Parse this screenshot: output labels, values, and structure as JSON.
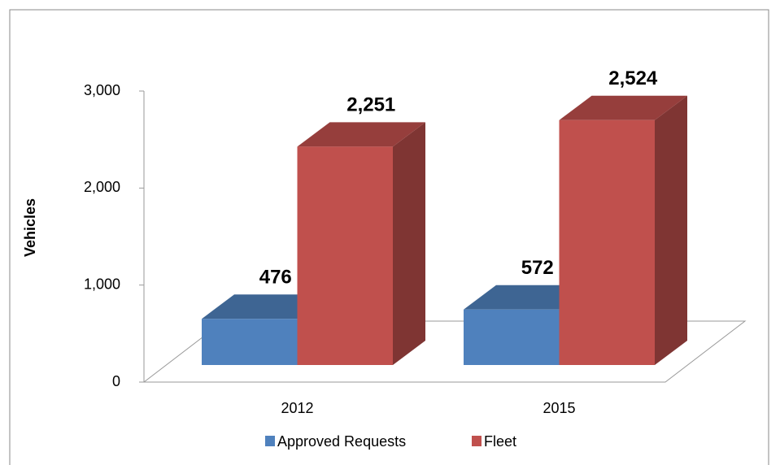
{
  "chart_data": {
    "type": "bar3d",
    "y_label": "Vehicles",
    "categories": [
      "2012",
      "2015"
    ],
    "series": [
      {
        "name": "Approved Requests",
        "color": "#4f81bd",
        "values": [
          476,
          572
        ],
        "value_labels": [
          "476",
          "572"
        ]
      },
      {
        "name": "Fleet",
        "color": "#c0504d",
        "values": [
          2251,
          2524
        ],
        "value_labels": [
          "2,251",
          "2,524"
        ]
      }
    ],
    "ylim": [
      0,
      3000
    ],
    "yticks": [
      0,
      {
        "value": 1000,
        "label": "1,000"
      },
      {
        "value": 2000,
        "label": "2,000"
      },
      {
        "value": 3000,
        "label": "3,000"
      }
    ]
  }
}
